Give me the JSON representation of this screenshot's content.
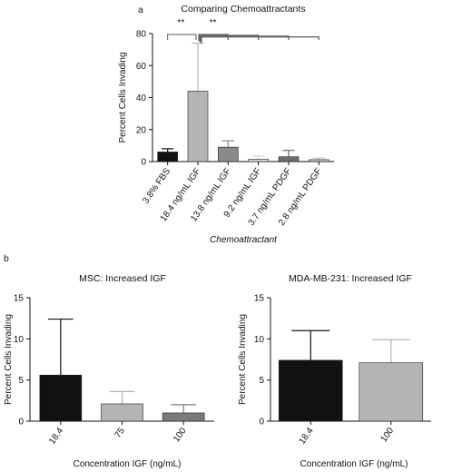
{
  "figure": {
    "panel_a": "a",
    "panel_b": "b"
  },
  "chart_data": [
    {
      "type": "bar",
      "title": "Comparing Chemoattractants",
      "xlabel": "Chemoattractant",
      "ylabel": "Percent Cells Invading",
      "ylim": [
        0,
        80
      ],
      "yticks": [
        0,
        20,
        40,
        60,
        80
      ],
      "categories": [
        "3.8% FBS",
        "18.4 ng/mL IGF",
        "13.8 ng/mL IGF",
        "9.2 ng/mL IGF",
        "3.7 ng/mL PDGF",
        "2.8 ng/mL PDGF"
      ],
      "values": [
        6,
        44,
        9,
        1.5,
        3,
        1.2
      ],
      "errors": [
        2,
        30,
        4,
        2,
        4,
        1
      ],
      "colors": [
        "#111111",
        "#b4b4b4",
        "#8a8a8a",
        "#d9d9d9",
        "#6e6e6e",
        "#c4c4c4"
      ],
      "significance": [
        "**",
        "**"
      ]
    },
    {
      "type": "bar",
      "title": "MSC: Increased IGF",
      "xlabel": "Concentration IGF (ng/mL)",
      "ylabel": "Percent Cells Invading",
      "ylim": [
        0,
        15
      ],
      "yticks": [
        0,
        5,
        10,
        15
      ],
      "categories": [
        "18.4",
        "75",
        "100"
      ],
      "values": [
        5.6,
        2.1,
        1.0
      ],
      "errors": [
        6.8,
        1.5,
        1.0
      ],
      "colors": [
        "#111111",
        "#b4b4b4",
        "#7a7a7a"
      ]
    },
    {
      "type": "bar",
      "title": "MDA-MB-231: Increased IGF",
      "xlabel": "Concentration IGF (ng/mL)",
      "ylabel": "Percent Cells Invading",
      "ylim": [
        0,
        15
      ],
      "yticks": [
        0,
        5,
        10,
        15
      ],
      "categories": [
        "18.4",
        "100"
      ],
      "values": [
        7.4,
        7.1
      ],
      "errors": [
        3.6,
        2.8
      ],
      "colors": [
        "#111111",
        "#b4b4b4"
      ]
    }
  ]
}
